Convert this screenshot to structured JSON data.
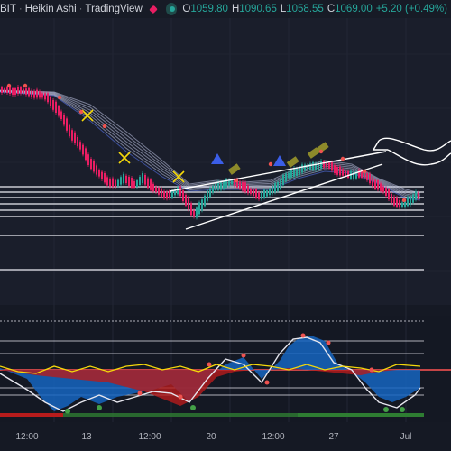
{
  "header": {
    "symbol": "BIT",
    "chart_style": "Heikin Ashi",
    "source": "TradingView",
    "open_label": "O",
    "open": "1059.80",
    "high_label": "H",
    "high": "1090.65",
    "low_label": "L",
    "low": "1058.55",
    "close_label": "C",
    "close": "1069.00",
    "change": "+5.20 (+0.49%)"
  },
  "chart_data": {
    "type": "line",
    "title": "",
    "xlabel": "",
    "ylabel": "",
    "x_ticks": [
      "12:00",
      "13",
      "12:00",
      "20",
      "12:00",
      "27",
      "Jul"
    ],
    "grid": true,
    "series": [
      {
        "price_path": [
          [
            0,
            100
          ],
          [
            20,
            100
          ],
          [
            40,
            104
          ],
          [
            52,
            108
          ],
          [
            60,
            118
          ],
          [
            68,
            130
          ],
          [
            78,
            148
          ],
          [
            88,
            162
          ],
          [
            98,
            178
          ],
          [
            108,
            192
          ],
          [
            118,
            200
          ],
          [
            128,
            204
          ],
          [
            138,
            196
          ],
          [
            148,
            206
          ],
          [
            158,
            196
          ],
          [
            168,
            208
          ],
          [
            178,
            214
          ],
          [
            188,
            216
          ],
          [
            198,
            210
          ],
          [
            208,
            226
          ],
          [
            214,
            240
          ],
          [
            220,
            230
          ],
          [
            226,
            220
          ],
          [
            236,
            208
          ],
          [
            246,
            204
          ],
          [
            256,
            202
          ],
          [
            266,
            204
          ],
          [
            276,
            212
          ],
          [
            286,
            216
          ],
          [
            296,
            214
          ],
          [
            306,
            206
          ],
          [
            316,
            196
          ],
          [
            326,
            190
          ],
          [
            336,
            186
          ],
          [
            346,
            184
          ],
          [
            356,
            182
          ],
          [
            366,
            184
          ],
          [
            376,
            190
          ],
          [
            386,
            194
          ],
          [
            396,
            192
          ],
          [
            406,
            196
          ],
          [
            416,
            204
          ],
          [
            426,
            212
          ],
          [
            436,
            222
          ],
          [
            444,
            228
          ],
          [
            452,
            222
          ],
          [
            460,
            216
          ],
          [
            466,
            218
          ]
        ],
        "ribbon_upper": [
          [
            0,
            100
          ],
          [
            60,
            102
          ],
          [
            100,
            116
          ],
          [
            140,
            146
          ],
          [
            180,
            178
          ],
          [
            210,
            204
          ],
          [
            240,
            200
          ],
          [
            270,
            202
          ],
          [
            300,
            200
          ],
          [
            330,
            186
          ],
          [
            360,
            178
          ],
          [
            390,
            182
          ],
          [
            420,
            198
          ],
          [
            450,
            210
          ],
          [
            466,
            214
          ]
        ],
        "ribbon_lower": [
          [
            0,
            102
          ],
          [
            60,
            106
          ],
          [
            100,
            134
          ],
          [
            140,
            168
          ],
          [
            180,
            196
          ],
          [
            210,
            212
          ],
          [
            240,
            210
          ],
          [
            270,
            210
          ],
          [
            300,
            210
          ],
          [
            330,
            198
          ],
          [
            360,
            190
          ],
          [
            390,
            192
          ],
          [
            420,
            204
          ],
          [
            450,
            220
          ],
          [
            466,
            222
          ]
        ]
      }
    ],
    "oscillator": {
      "blue_area": [
        [
          0,
          408
        ],
        [
          10,
          412
        ],
        [
          30,
          420
        ],
        [
          45,
          440
        ],
        [
          60,
          456
        ],
        [
          75,
          450
        ],
        [
          90,
          440
        ],
        [
          110,
          448
        ],
        [
          130,
          440
        ],
        [
          150,
          436
        ],
        [
          170,
          432
        ],
        [
          190,
          426
        ],
        [
          210,
          446
        ],
        [
          230,
          420
        ],
        [
          250,
          404
        ],
        [
          270,
          396
        ],
        [
          290,
          420
        ],
        [
          310,
          400
        ],
        [
          320,
          384
        ],
        [
          330,
          376
        ],
        [
          345,
          372
        ],
        [
          360,
          378
        ],
        [
          375,
          404
        ],
        [
          390,
          412
        ],
        [
          405,
          424
        ],
        [
          420,
          440
        ],
        [
          435,
          446
        ],
        [
          450,
          440
        ],
        [
          466,
          430
        ]
      ],
      "red_area": [
        [
          0,
          410
        ],
        [
          40,
          416
        ],
        [
          80,
          420
        ],
        [
          120,
          424
        ],
        [
          160,
          434
        ],
        [
          200,
          450
        ],
        [
          220,
          440
        ],
        [
          240,
          418
        ],
        [
          260,
          412
        ],
        [
          280,
          410
        ],
        [
          300,
          410
        ],
        [
          320,
          408
        ],
        [
          340,
          410
        ],
        [
          360,
          412
        ],
        [
          380,
          414
        ],
        [
          400,
          416
        ],
        [
          420,
          412
        ],
        [
          440,
          410
        ],
        [
          466,
          410
        ]
      ],
      "yellow_line": [
        [
          0,
          406
        ],
        [
          20,
          412
        ],
        [
          40,
          414
        ],
        [
          60,
          406
        ],
        [
          80,
          412
        ],
        [
          100,
          406
        ],
        [
          120,
          412
        ],
        [
          140,
          406
        ],
        [
          160,
          404
        ],
        [
          180,
          410
        ],
        [
          200,
          406
        ],
        [
          220,
          412
        ],
        [
          240,
          404
        ],
        [
          260,
          410
        ],
        [
          280,
          404
        ],
        [
          300,
          406
        ],
        [
          320,
          410
        ],
        [
          340,
          404
        ],
        [
          360,
          410
        ],
        [
          380,
          406
        ],
        [
          400,
          408
        ],
        [
          420,
          412
        ],
        [
          440,
          404
        ],
        [
          466,
          406
        ]
      ],
      "white_line": [
        [
          0,
          414
        ],
        [
          30,
          432
        ],
        [
          50,
          446
        ],
        [
          70,
          456
        ],
        [
          90,
          446
        ],
        [
          110,
          438
        ],
        [
          130,
          446
        ],
        [
          150,
          440
        ],
        [
          170,
          434
        ],
        [
          190,
          436
        ],
        [
          210,
          446
        ],
        [
          230,
          420
        ],
        [
          250,
          398
        ],
        [
          270,
          404
        ],
        [
          290,
          424
        ],
        [
          310,
          392
        ],
        [
          325,
          376
        ],
        [
          340,
          374
        ],
        [
          355,
          380
        ],
        [
          370,
          402
        ],
        [
          390,
          410
        ],
        [
          405,
          430
        ],
        [
          420,
          446
        ],
        [
          440,
          452
        ],
        [
          460,
          438
        ],
        [
          466,
          430
        ]
      ]
    }
  },
  "style": {
    "bg": "#171b26",
    "up_color": "#26a69a",
    "down_color": "#e91e63",
    "ribbon_color": "#c5cae9",
    "ribbon_blue": "#5c7cfa",
    "osc_blue": "#1565c0",
    "osc_red": "#b71c1c",
    "osc_yellow": "#f5d90a",
    "cross_color": "#f5d90a",
    "triangle_color": "#3b5ee8",
    "green_dot": "#43a047",
    "red_dot": "#ef5350"
  }
}
